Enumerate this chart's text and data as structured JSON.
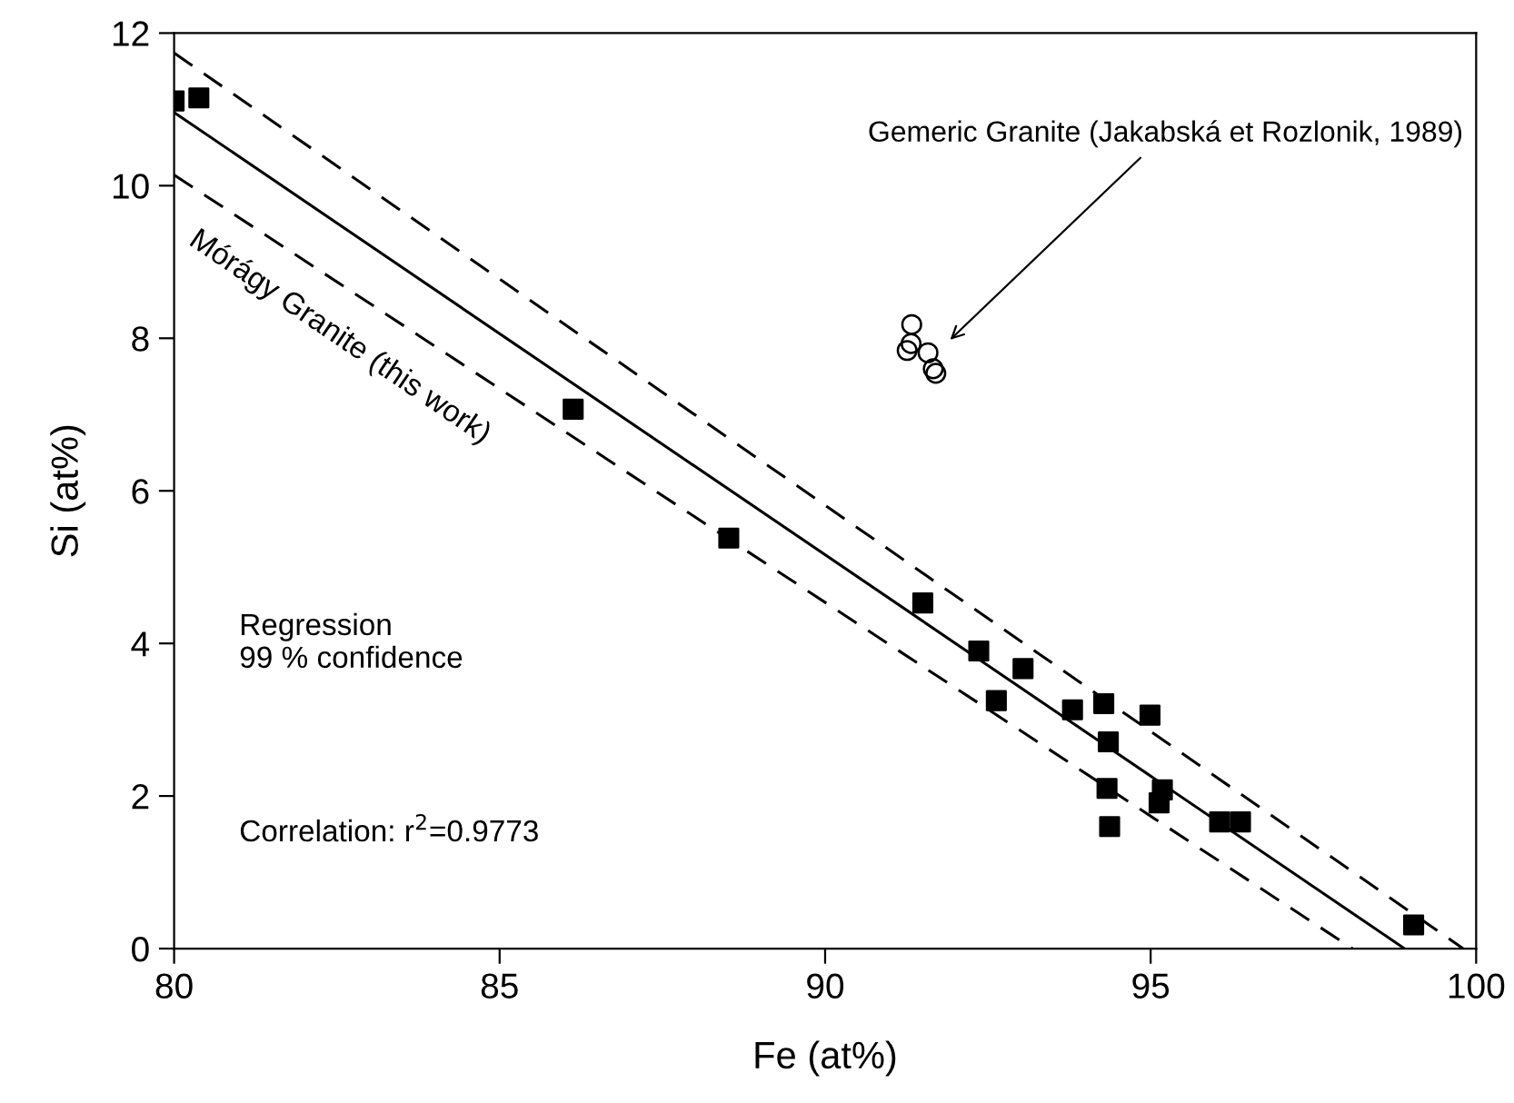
{
  "chart_data": {
    "type": "scatter",
    "xlabel": "Fe (at%)",
    "ylabel": "Si (at%)",
    "xlim": [
      80,
      100
    ],
    "ylim": [
      0,
      12
    ],
    "xticks": [
      80,
      85,
      90,
      95,
      100
    ],
    "yticks": [
      0,
      2,
      4,
      6,
      8,
      10,
      12
    ],
    "grid": false,
    "legend": false,
    "series": [
      {
        "marker": "square",
        "color": "#000000",
        "x": [
          80.0,
          80.38,
          86.13,
          88.52,
          91.5,
          92.36,
          93.04,
          92.63,
          93.8,
          94.28,
          94.99,
          94.35,
          94.33,
          94.37,
          95.18,
          95.13,
          96.06,
          96.38,
          99.04
        ],
        "values": [
          11.11,
          11.15,
          7.07,
          5.38,
          4.53,
          3.9,
          3.67,
          3.25,
          3.13,
          3.21,
          3.06,
          2.71,
          2.1,
          1.6,
          2.08,
          1.91,
          1.66,
          1.66,
          0.31
        ]
      },
      {
        "marker": "circle",
        "color": "#000000",
        "x": [
          91.33,
          91.32,
          91.26,
          91.58,
          91.66,
          91.7
        ],
        "values": [
          8.18,
          7.93,
          7.84,
          7.81,
          7.6,
          7.54
        ]
      },
      {
        "type": "line",
        "line_style": "solid",
        "color": "#000000",
        "x": [
          80,
          98.9
        ],
        "values": [
          10.96,
          0
        ]
      },
      {
        "type": "line",
        "line_style": "dashed",
        "color": "#000000",
        "x": [
          80,
          99.8
        ],
        "values": [
          11.74,
          0
        ]
      },
      {
        "type": "line",
        "line_style": "dashed",
        "color": "#000000",
        "x": [
          80,
          98.1
        ],
        "values": [
          10.14,
          0
        ]
      }
    ],
    "annotations": [
      "Gemeric Granite (Jakabská et Rozlonik, 1989)",
      "Mórágy Granite (this work)",
      "Regression\n99 % confidence",
      "Correlation: r$^{2}$=0.9773"
    ]
  }
}
